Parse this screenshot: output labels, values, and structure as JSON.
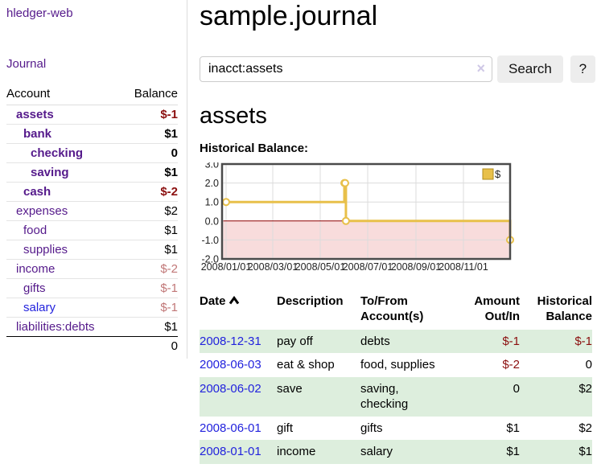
{
  "app": {
    "title": "hledger-web"
  },
  "sidebar": {
    "journal_link": "Journal",
    "accounts": {
      "header_account": "Account",
      "header_balance": "Balance",
      "rows": [
        {
          "label": "assets",
          "balance": "$-1",
          "indent": 1,
          "bold": true,
          "neg": "strong"
        },
        {
          "label": "bank",
          "balance": "$1",
          "indent": 2,
          "bold": true
        },
        {
          "label": "checking",
          "balance": "0",
          "indent": 3,
          "bold": true
        },
        {
          "label": "saving",
          "balance": "$1",
          "indent": 3,
          "bold": true
        },
        {
          "label": "cash",
          "balance": "$-2",
          "indent": 2,
          "bold": true,
          "neg": "strong"
        },
        {
          "label": "expenses",
          "balance": "$2",
          "indent": 1
        },
        {
          "label": "food",
          "balance": "$1",
          "indent": 2
        },
        {
          "label": "supplies",
          "balance": "$1",
          "indent": 2
        },
        {
          "label": "income",
          "balance": "$-2",
          "indent": 1,
          "neg": "faded"
        },
        {
          "label": "gifts",
          "balance": "$-1",
          "indent": 2,
          "neg": "faded"
        },
        {
          "label": "salary",
          "balance": "$-1",
          "indent": 2,
          "neg": "faded",
          "blue": true
        },
        {
          "label": "liabilities:debts",
          "balance": "$1",
          "indent": 1
        }
      ],
      "total": "0"
    }
  },
  "main": {
    "title": "sample.journal",
    "search": {
      "value": "inacct:assets",
      "clear_icon": "×",
      "button_label": "Search",
      "help_label": "?"
    },
    "account_heading": "assets",
    "chart_label": "Historical Balance:"
  },
  "chart_data": {
    "type": "line",
    "title": "Historical Balance:",
    "legend": "$",
    "step": true,
    "grid": true,
    "legend_position": "top-right",
    "x_range": [
      "2008/01/01",
      "2008/12/31"
    ],
    "x_ticks": [
      "2008/01/01",
      "2008/03/01",
      "2008/05/01",
      "2008/07/01",
      "2008/09/01",
      "2008/11/01"
    ],
    "y_ticks": [
      3,
      2,
      1,
      0,
      -1,
      -2
    ],
    "ylim": [
      -2,
      3
    ],
    "series": [
      {
        "name": "$",
        "points": [
          [
            "2008/01/01",
            1
          ],
          [
            "2008/06/01",
            2
          ],
          [
            "2008/06/02",
            2
          ],
          [
            "2008/06/03",
            0
          ],
          [
            "2008/12/31",
            -1
          ]
        ]
      }
    ],
    "colors": {
      "line": "#e8c04a",
      "negative_region": "#f8dcdc",
      "zero_line": "#8b0000",
      "grid": "#dcdcdc",
      "border": "#4a4a4a"
    }
  },
  "register": {
    "headers": {
      "date": "Date",
      "description": "Description",
      "accounts": "To/From\nAccount(s)",
      "amount": "Amount\nOut/In",
      "balance": "Historical\nBalance"
    },
    "sort_icon": "chevron-up",
    "rows": [
      {
        "date": "2008-12-31",
        "description": "pay off",
        "accounts": "debts",
        "amount": "$-1",
        "balance": "$-1",
        "shaded": true
      },
      {
        "date": "2008-06-03",
        "description": "eat & shop",
        "accounts": "food, supplies",
        "amount": "$-2",
        "balance": "0",
        "shaded": false
      },
      {
        "date": "2008-06-02",
        "description": "save",
        "accounts": "saving,\nchecking",
        "amount": "0",
        "balance": "$2",
        "shaded": true
      },
      {
        "date": "2008-06-01",
        "description": "gift",
        "accounts": "gifts",
        "amount": "$1",
        "balance": "$2",
        "shaded": false
      },
      {
        "date": "2008-01-01",
        "description": "income",
        "accounts": "salary",
        "amount": "$1",
        "balance": "$1",
        "shaded": true
      }
    ]
  },
  "colors": {
    "link_purple": "#551a8b",
    "link_blue": "#2222dd",
    "negative_strong": "#8b0f0f",
    "negative_faded": "#c17777",
    "row_shade": "#ddeedd"
  }
}
